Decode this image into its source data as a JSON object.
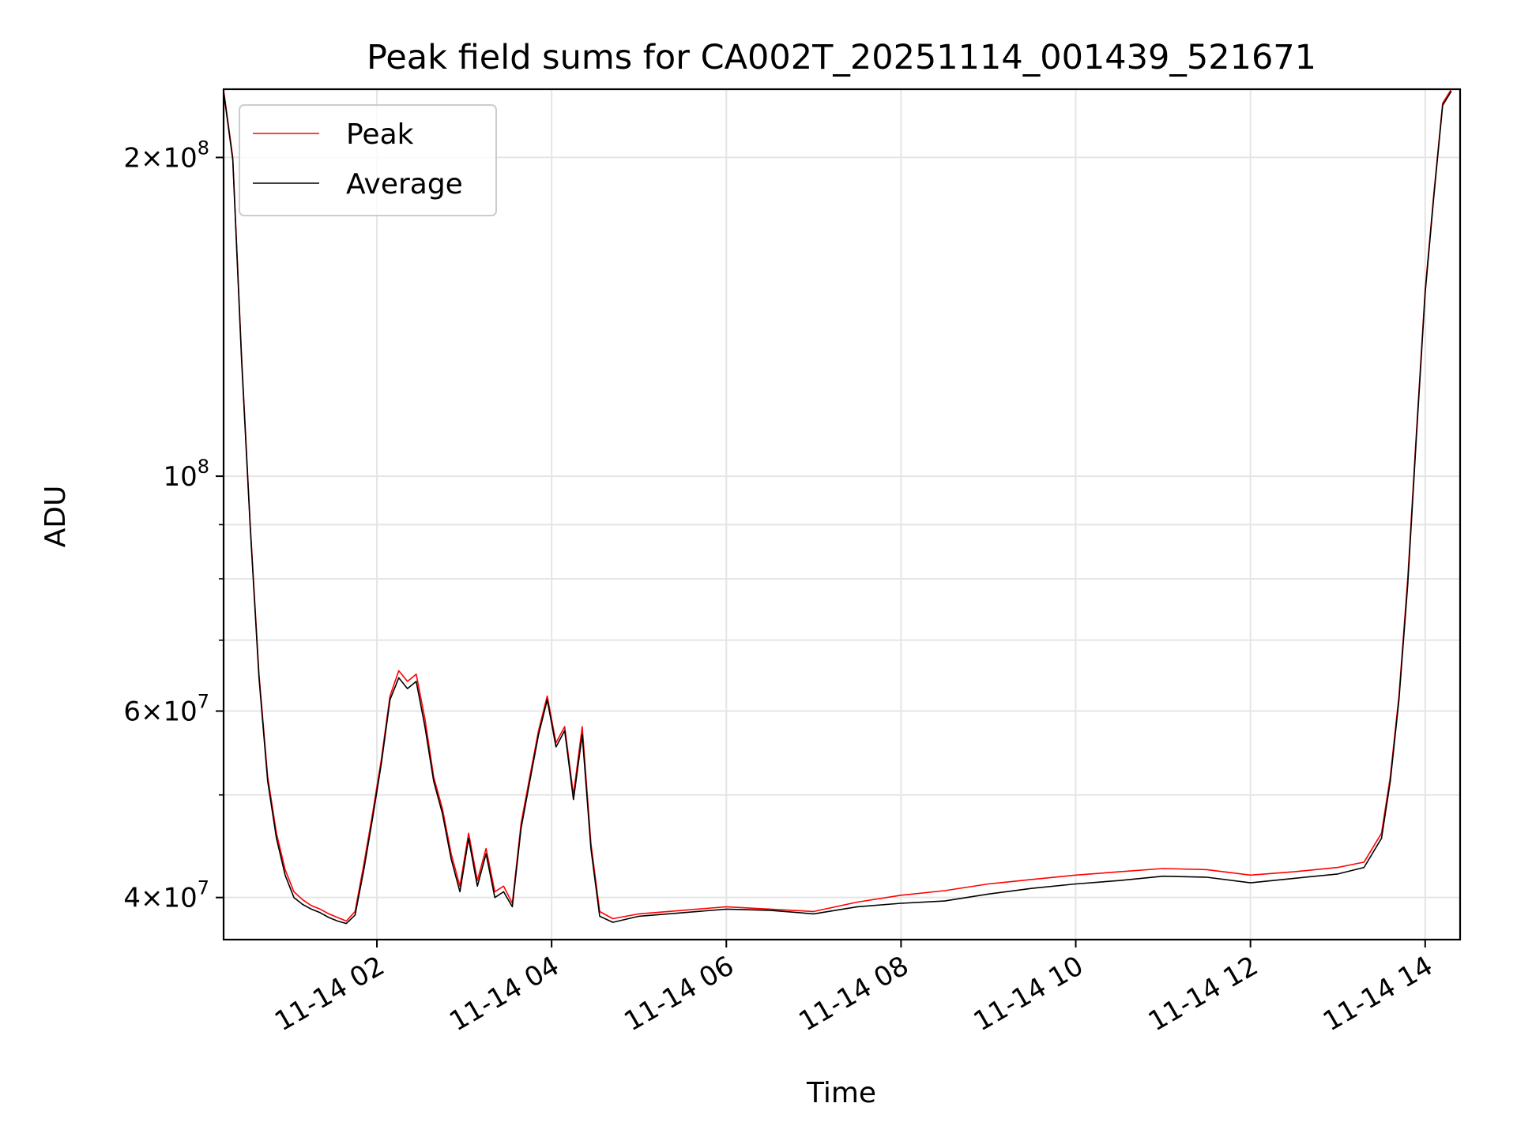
{
  "chart_data": {
    "type": "line",
    "title": "Peak field sums for CA002T_20251114_001439_521671",
    "xlabel": "Time",
    "ylabel": "ADU",
    "yscale": "log",
    "grid": true,
    "legend_position": "upper-left",
    "xlim_hours": [
      0.245,
      14.4
    ],
    "ylim": [
      36500000,
      232000000
    ],
    "x_tick_labels": [
      {
        "hours": 2,
        "label": "11-14 02"
      },
      {
        "hours": 4,
        "label": "11-14 04"
      },
      {
        "hours": 6,
        "label": "11-14 06"
      },
      {
        "hours": 8,
        "label": "11-14 08"
      },
      {
        "hours": 10,
        "label": "11-14 10"
      },
      {
        "hours": 12,
        "label": "11-14 12"
      },
      {
        "hours": 14,
        "label": "11-14 14"
      }
    ],
    "y_major_ticks": [
      {
        "value": 40000000,
        "mantissa": "4",
        "exp": "7"
      },
      {
        "value": 60000000,
        "mantissa": "6",
        "exp": "7"
      },
      {
        "value": 100000000,
        "mantissa": "",
        "exp": "8"
      },
      {
        "value": 200000000,
        "mantissa": "2",
        "exp": "8"
      }
    ],
    "y_minor_ticks": [
      50000000,
      70000000,
      80000000,
      90000000
    ],
    "series": [
      {
        "name": "Peak",
        "color": "#ff0000",
        "x_hours": [
          0.25,
          0.35,
          0.45,
          0.55,
          0.65,
          0.75,
          0.85,
          0.95,
          1.05,
          1.15,
          1.25,
          1.35,
          1.45,
          1.55,
          1.65,
          1.75,
          1.85,
          1.95,
          2.05,
          2.15,
          2.25,
          2.35,
          2.45,
          2.55,
          2.65,
          2.75,
          2.85,
          2.95,
          3.05,
          3.15,
          3.25,
          3.35,
          3.45,
          3.55,
          3.65,
          3.75,
          3.85,
          3.95,
          4.05,
          4.15,
          4.25,
          4.35,
          4.45,
          4.55,
          4.7,
          5.0,
          5.5,
          6.0,
          6.5,
          7.0,
          7.5,
          8.0,
          8.5,
          9.0,
          9.5,
          10.0,
          10.5,
          11.0,
          11.5,
          12.0,
          12.5,
          13.0,
          13.3,
          13.5,
          13.6,
          13.7,
          13.8,
          13.9,
          14.0,
          14.1,
          14.2,
          14.3
        ],
        "values": [
          230000000,
          200000000,
          130000000,
          90000000,
          65000000,
          52000000,
          46000000,
          42500000,
          40500000,
          39800000,
          39300000,
          39000000,
          38600000,
          38300000,
          38000000,
          38800000,
          43000000,
          48000000,
          54000000,
          62000000,
          65500000,
          64000000,
          65000000,
          59000000,
          52000000,
          48500000,
          44000000,
          41000000,
          46000000,
          41500000,
          44500000,
          40500000,
          41000000,
          39500000,
          47000000,
          52000000,
          57500000,
          62000000,
          56000000,
          58000000,
          50000000,
          58000000,
          45000000,
          38800000,
          38200000,
          38600000,
          38900000,
          39200000,
          39000000,
          38800000,
          39600000,
          40200000,
          40600000,
          41200000,
          41600000,
          42000000,
          42300000,
          42600000,
          42500000,
          42000000,
          42300000,
          42700000,
          43200000,
          46000000,
          52000000,
          62000000,
          80000000,
          110000000,
          150000000,
          185000000,
          225000000,
          232000000
        ]
      },
      {
        "name": "Average",
        "color": "#000000",
        "x_hours": [
          0.25,
          0.35,
          0.45,
          0.55,
          0.65,
          0.75,
          0.85,
          0.95,
          1.05,
          1.15,
          1.25,
          1.35,
          1.45,
          1.55,
          1.65,
          1.75,
          1.85,
          1.95,
          2.05,
          2.15,
          2.25,
          2.35,
          2.45,
          2.55,
          2.65,
          2.75,
          2.85,
          2.95,
          3.05,
          3.15,
          3.25,
          3.35,
          3.45,
          3.55,
          3.65,
          3.75,
          3.85,
          3.95,
          4.05,
          4.15,
          4.25,
          4.35,
          4.45,
          4.55,
          4.7,
          5.0,
          5.5,
          6.0,
          6.5,
          7.0,
          7.5,
          8.0,
          8.5,
          9.0,
          9.5,
          10.0,
          10.5,
          11.0,
          11.5,
          12.0,
          12.5,
          13.0,
          13.3,
          13.5,
          13.6,
          13.7,
          13.8,
          13.9,
          14.0,
          14.1,
          14.2,
          14.3
        ],
        "values": [
          229000000,
          199000000,
          129000000,
          89500000,
          64500000,
          51500000,
          45500000,
          42000000,
          40000000,
          39400000,
          39000000,
          38700000,
          38300000,
          38000000,
          37800000,
          38500000,
          42500000,
          47500000,
          53500000,
          61500000,
          64500000,
          63000000,
          64000000,
          58000000,
          51500000,
          48000000,
          43500000,
          40500000,
          45500000,
          41000000,
          44000000,
          40000000,
          40500000,
          39200000,
          46500000,
          51500000,
          57000000,
          61500000,
          55500000,
          57500000,
          49500000,
          57000000,
          44500000,
          38400000,
          37900000,
          38400000,
          38700000,
          39000000,
          38900000,
          38600000,
          39200000,
          39500000,
          39700000,
          40300000,
          40800000,
          41200000,
          41500000,
          41900000,
          41800000,
          41300000,
          41700000,
          42100000,
          42700000,
          45500000,
          51500000,
          61500000,
          79000000,
          109000000,
          149000000,
          184000000,
          224000000,
          231000000
        ]
      }
    ]
  }
}
